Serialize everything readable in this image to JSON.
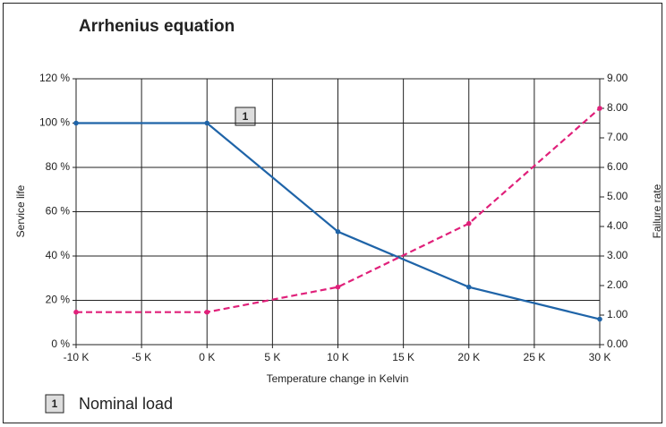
{
  "chart_data": {
    "type": "line",
    "title": "Arrhenius equation",
    "x_label": "Temperature change in Kelvin",
    "y_label": "Service life",
    "y2_label": "Failure rate",
    "marker_label": "1",
    "note": "Nominal load",
    "x": [
      -10,
      0,
      10,
      20,
      30
    ],
    "series": [
      {
        "name": "Service life",
        "color": "#1f64a8",
        "values": [
          100,
          100,
          51,
          26,
          11.5
        ]
      },
      {
        "name": "Failure rate",
        "color": "#e0207a",
        "axis": "y2",
        "dashed": true,
        "values": [
          1.1,
          1.1,
          1.95,
          4.1,
          8.0
        ]
      }
    ],
    "xlim": [
      -10,
      30
    ],
    "xticks": [
      {
        "value": -10,
        "label": "-10 K"
      },
      {
        "value": -5,
        "label": "-5 K"
      },
      {
        "value": 0,
        "label": "0 K"
      },
      {
        "value": 5,
        "label": "5 K"
      },
      {
        "value": 10,
        "label": "10 K"
      },
      {
        "value": 15,
        "label": "15 K"
      },
      {
        "value": 20,
        "label": "20 K"
      },
      {
        "value": 25,
        "label": "25 K"
      },
      {
        "value": 30,
        "label": "30 K"
      }
    ],
    "ylim": [
      0,
      120
    ],
    "yticks": [
      {
        "value": 0,
        "label": "0 %"
      },
      {
        "value": 20,
        "label": "20 %"
      },
      {
        "value": 40,
        "label": "40 %"
      },
      {
        "value": 60,
        "label": "60 %"
      },
      {
        "value": 80,
        "label": "80 %"
      },
      {
        "value": 100,
        "label": "100 %"
      },
      {
        "value": 120,
        "label": "120 %"
      }
    ],
    "y2lim": [
      0,
      9
    ],
    "y2ticks": [
      {
        "value": 0,
        "label": "0.00"
      },
      {
        "value": 1,
        "label": "1.00"
      },
      {
        "value": 2,
        "label": "2.00"
      },
      {
        "value": 3,
        "label": "3.00"
      },
      {
        "value": 4,
        "label": "4.00"
      },
      {
        "value": 5,
        "label": "5.00"
      },
      {
        "value": 6,
        "label": "6.00"
      },
      {
        "value": 7,
        "label": "7.00"
      },
      {
        "value": 8,
        "label": "8.00"
      },
      {
        "value": 9,
        "label": "9.00"
      }
    ],
    "grid": true
  }
}
